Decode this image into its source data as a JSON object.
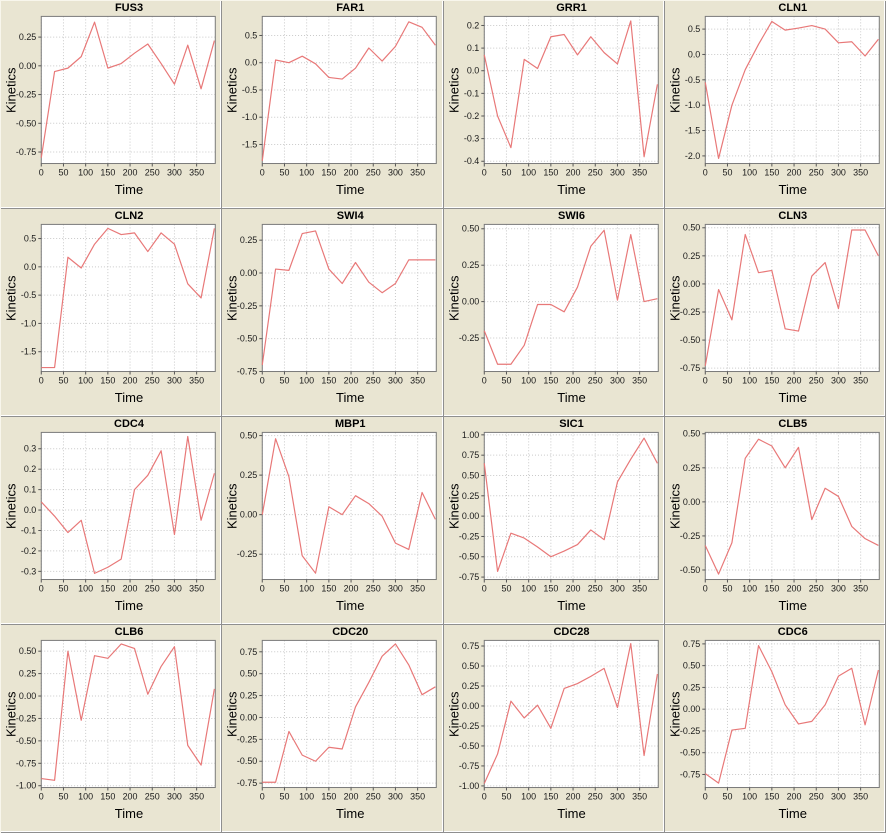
{
  "page": {
    "background_color": "#e9e5d2",
    "panel_separator_color": "#8f8f8f",
    "plot_background_color": "#ffffff",
    "plot_frame_color": "#7a7a7a",
    "gridline_color": "#c9c9c9",
    "line_color": "#e87878",
    "x_axis_label": "Time",
    "y_axis_label": "Kinetics"
  },
  "axis_shared": {
    "time_points": [
      0,
      30,
      60,
      90,
      120,
      150,
      180,
      210,
      240,
      270,
      300,
      330,
      360,
      390
    ],
    "xticks": [
      0,
      50,
      100,
      150,
      200,
      250,
      300,
      350
    ],
    "xtick_labels": [
      "0",
      "50",
      "100",
      "150",
      "200",
      "250",
      "300",
      "350"
    ],
    "xlim": [
      0,
      392
    ]
  },
  "chart_data": [
    {
      "type": "line",
      "title": "FUS3",
      "xlabel": "Time",
      "ylabel": "Kinetics",
      "values": [
        -0.8,
        -0.05,
        -0.02,
        0.08,
        0.38,
        -0.02,
        0.02,
        0.11,
        0.19,
        0.02,
        -0.16,
        0.18,
        -0.2,
        0.22
      ],
      "ylim": [
        -0.85,
        0.43
      ],
      "yticks": [
        0.25,
        0.0,
        -0.25,
        -0.5,
        -0.75
      ],
      "ytick_labels": [
        "0.25",
        "0.00",
        "-0.25",
        "-0.50",
        "-0.75"
      ]
    },
    {
      "type": "line",
      "title": "FAR1",
      "xlabel": "Time",
      "ylabel": "Kinetics",
      "values": [
        -1.8,
        0.05,
        0.0,
        0.12,
        -0.02,
        -0.27,
        -0.3,
        -0.1,
        0.27,
        0.03,
        0.3,
        0.75,
        0.65,
        0.32
      ],
      "ylim": [
        -1.85,
        0.85
      ],
      "yticks": [
        0.5,
        0.0,
        -0.5,
        -1.0,
        -1.5
      ],
      "ytick_labels": [
        "0.5",
        "0.0",
        "-0.5",
        "-1.0",
        "-1.5"
      ]
    },
    {
      "type": "line",
      "title": "GRR1",
      "xlabel": "Time",
      "ylabel": "Kinetics",
      "values": [
        0.07,
        -0.2,
        -0.34,
        0.05,
        0.01,
        0.15,
        0.16,
        0.07,
        0.15,
        0.08,
        0.03,
        0.22,
        -0.38,
        -0.06
      ],
      "ylim": [
        -0.41,
        0.24
      ],
      "yticks": [
        0.2,
        0.1,
        0.0,
        -0.1,
        -0.2,
        -0.3,
        -0.4
      ],
      "ytick_labels": [
        "0.2",
        "0.1",
        "0.0",
        "-0.1",
        "-0.2",
        "-0.3",
        "-0.4"
      ]
    },
    {
      "type": "line",
      "title": "CLN1",
      "xlabel": "Time",
      "ylabel": "Kinetics",
      "values": [
        -0.55,
        -2.05,
        -1.0,
        -0.3,
        0.2,
        0.65,
        0.48,
        0.52,
        0.57,
        0.5,
        0.23,
        0.25,
        -0.03,
        0.3
      ],
      "ylim": [
        -2.15,
        0.75
      ],
      "yticks": [
        0.5,
        0.0,
        -0.5,
        -1.0,
        -1.5,
        -2.0
      ],
      "ytick_labels": [
        "0.5",
        "0.0",
        "-0.5",
        "-1.0",
        "-1.5",
        "-2.0"
      ]
    },
    {
      "type": "line",
      "title": "CLN2",
      "xlabel": "Time",
      "ylabel": "Kinetics",
      "values": [
        -1.78,
        -1.78,
        0.17,
        -0.02,
        0.4,
        0.68,
        0.57,
        0.6,
        0.27,
        0.6,
        0.4,
        -0.3,
        -0.55,
        0.68
      ],
      "ylim": [
        -1.85,
        0.75
      ],
      "yticks": [
        0.5,
        0.0,
        -0.5,
        -1.0,
        -1.5
      ],
      "ytick_labels": [
        "0.5",
        "0.0",
        "-0.5",
        "-1.0",
        "-1.5"
      ]
    },
    {
      "type": "line",
      "title": "SWI4",
      "xlabel": "Time",
      "ylabel": "Kinetics",
      "values": [
        -0.7,
        0.03,
        0.02,
        0.3,
        0.32,
        0.03,
        -0.08,
        0.08,
        -0.07,
        -0.15,
        -0.08,
        0.1,
        0.1,
        0.1
      ],
      "ylim": [
        -0.75,
        0.37
      ],
      "yticks": [
        0.25,
        0.0,
        -0.25,
        -0.5,
        -0.75
      ],
      "ytick_labels": [
        "0.25",
        "0.00",
        "-0.25",
        "-0.50",
        "-0.75"
      ]
    },
    {
      "type": "line",
      "title": "SWI6",
      "xlabel": "Time",
      "ylabel": "Kinetics",
      "values": [
        -0.2,
        -0.43,
        -0.43,
        -0.3,
        -0.02,
        -0.02,
        -0.07,
        0.1,
        0.38,
        0.49,
        0.01,
        0.46,
        0.0,
        0.02
      ],
      "ylim": [
        -0.48,
        0.53
      ],
      "yticks": [
        0.5,
        0.25,
        0.0,
        -0.25
      ],
      "ytick_labels": [
        "0.50",
        "0.25",
        "0.00",
        "-0.25"
      ]
    },
    {
      "type": "line",
      "title": "CLN3",
      "xlabel": "Time",
      "ylabel": "Kinetics",
      "values": [
        -0.73,
        -0.05,
        -0.32,
        0.44,
        0.1,
        0.12,
        -0.4,
        -0.42,
        0.07,
        0.19,
        -0.22,
        0.48,
        0.48,
        0.25
      ],
      "ylim": [
        -0.78,
        0.53
      ],
      "yticks": [
        0.5,
        0.25,
        0.0,
        -0.25,
        -0.5,
        -0.75
      ],
      "ytick_labels": [
        "0.50",
        "0.25",
        "0.00",
        "-0.25",
        "-0.50",
        "-0.75"
      ]
    },
    {
      "type": "line",
      "title": "CDC4",
      "xlabel": "Time",
      "ylabel": "Kinetics",
      "values": [
        0.04,
        -0.03,
        -0.11,
        -0.05,
        -0.31,
        -0.28,
        -0.24,
        0.1,
        0.17,
        0.29,
        -0.12,
        0.36,
        -0.05,
        0.18
      ],
      "ylim": [
        -0.34,
        0.38
      ],
      "yticks": [
        0.3,
        0.2,
        0.1,
        0.0,
        -0.1,
        -0.2,
        -0.3
      ],
      "ytick_labels": [
        "0.3",
        "0.2",
        "0.1",
        "0.0",
        "-0.1",
        "-0.2",
        "-0.3"
      ]
    },
    {
      "type": "line",
      "title": "MBP1",
      "xlabel": "Time",
      "ylabel": "Kinetics",
      "values": [
        0.0,
        0.48,
        0.24,
        -0.26,
        -0.37,
        0.05,
        0.0,
        0.12,
        0.07,
        -0.01,
        -0.18,
        -0.22,
        0.14,
        -0.03
      ],
      "ylim": [
        -0.41,
        0.52
      ],
      "yticks": [
        0.5,
        0.25,
        0.0,
        -0.25
      ],
      "ytick_labels": [
        "0.50",
        "0.25",
        "0.00",
        "-0.25"
      ]
    },
    {
      "type": "line",
      "title": "SIC1",
      "xlabel": "Time",
      "ylabel": "Kinetics",
      "values": [
        0.65,
        -0.68,
        -0.21,
        -0.27,
        -0.38,
        -0.5,
        -0.43,
        -0.35,
        -0.17,
        -0.29,
        0.42,
        0.7,
        0.96,
        0.65
      ],
      "ylim": [
        -0.78,
        1.03
      ],
      "yticks": [
        1.0,
        0.75,
        0.5,
        0.25,
        0.0,
        -0.25,
        -0.5,
        -0.75
      ],
      "ytick_labels": [
        "1.00",
        "0.75",
        "0.50",
        "0.25",
        "0.00",
        "-0.25",
        "-0.50",
        "-0.75"
      ]
    },
    {
      "type": "line",
      "title": "CLB5",
      "xlabel": "Time",
      "ylabel": "Kinetics",
      "values": [
        -0.32,
        -0.53,
        -0.3,
        0.32,
        0.46,
        0.41,
        0.25,
        0.4,
        -0.13,
        0.1,
        0.04,
        -0.18,
        -0.27,
        -0.32
      ],
      "ylim": [
        -0.57,
        0.51
      ],
      "yticks": [
        0.5,
        0.25,
        0.0,
        -0.25,
        -0.5
      ],
      "ytick_labels": [
        "0.50",
        "0.25",
        "0.00",
        "-0.25",
        "-0.50"
      ]
    },
    {
      "type": "line",
      "title": "CLB6",
      "xlabel": "Time",
      "ylabel": "Kinetics",
      "values": [
        -0.92,
        -0.94,
        0.5,
        -0.27,
        0.45,
        0.42,
        0.58,
        0.53,
        0.02,
        0.33,
        0.55,
        -0.55,
        -0.77,
        0.08
      ],
      "ylim": [
        -1.02,
        0.62
      ],
      "yticks": [
        0.5,
        0.25,
        0.0,
        -0.25,
        -0.5,
        -0.75,
        -1.0
      ],
      "ytick_labels": [
        "0.50",
        "0.25",
        "0.00",
        "-0.25",
        "-0.50",
        "-0.75",
        "-1.00"
      ]
    },
    {
      "type": "line",
      "title": "CDC20",
      "xlabel": "Time",
      "ylabel": "Kinetics",
      "values": [
        -0.74,
        -0.74,
        -0.16,
        -0.43,
        -0.5,
        -0.34,
        -0.36,
        0.12,
        0.4,
        0.7,
        0.84,
        0.6,
        0.26,
        0.35
      ],
      "ylim": [
        -0.8,
        0.88
      ],
      "yticks": [
        0.75,
        0.5,
        0.25,
        0.0,
        -0.25,
        -0.5,
        -0.75
      ],
      "ytick_labels": [
        "0.75",
        "0.50",
        "0.25",
        "0.00",
        "-0.25",
        "-0.50",
        "-0.75"
      ]
    },
    {
      "type": "line",
      "title": "CDC28",
      "xlabel": "Time",
      "ylabel": "Kinetics",
      "values": [
        -0.97,
        -0.6,
        0.06,
        -0.15,
        0.01,
        -0.28,
        0.22,
        0.28,
        0.37,
        0.47,
        -0.02,
        0.78,
        -0.62,
        0.4
      ],
      "ylim": [
        -1.02,
        0.82
      ],
      "yticks": [
        0.75,
        0.5,
        0.25,
        0.0,
        -0.25,
        -0.5,
        -0.75,
        -1.0
      ],
      "ytick_labels": [
        "0.75",
        "0.50",
        "0.25",
        "0.00",
        "-0.25",
        "-0.50",
        "-0.75",
        "-1.00"
      ]
    },
    {
      "type": "line",
      "title": "CDC6",
      "xlabel": "Time",
      "ylabel": "Kinetics",
      "values": [
        -0.74,
        -0.85,
        -0.24,
        -0.22,
        0.73,
        0.43,
        0.05,
        -0.17,
        -0.14,
        0.05,
        0.38,
        0.47,
        -0.18,
        0.45
      ],
      "ylim": [
        -0.9,
        0.79
      ],
      "yticks": [
        0.75,
        0.5,
        0.25,
        0.0,
        -0.25,
        -0.5,
        -0.75
      ],
      "ytick_labels": [
        "0.75",
        "0.50",
        "0.25",
        "0.00",
        "-0.25",
        "-0.50",
        "-0.75"
      ]
    }
  ]
}
